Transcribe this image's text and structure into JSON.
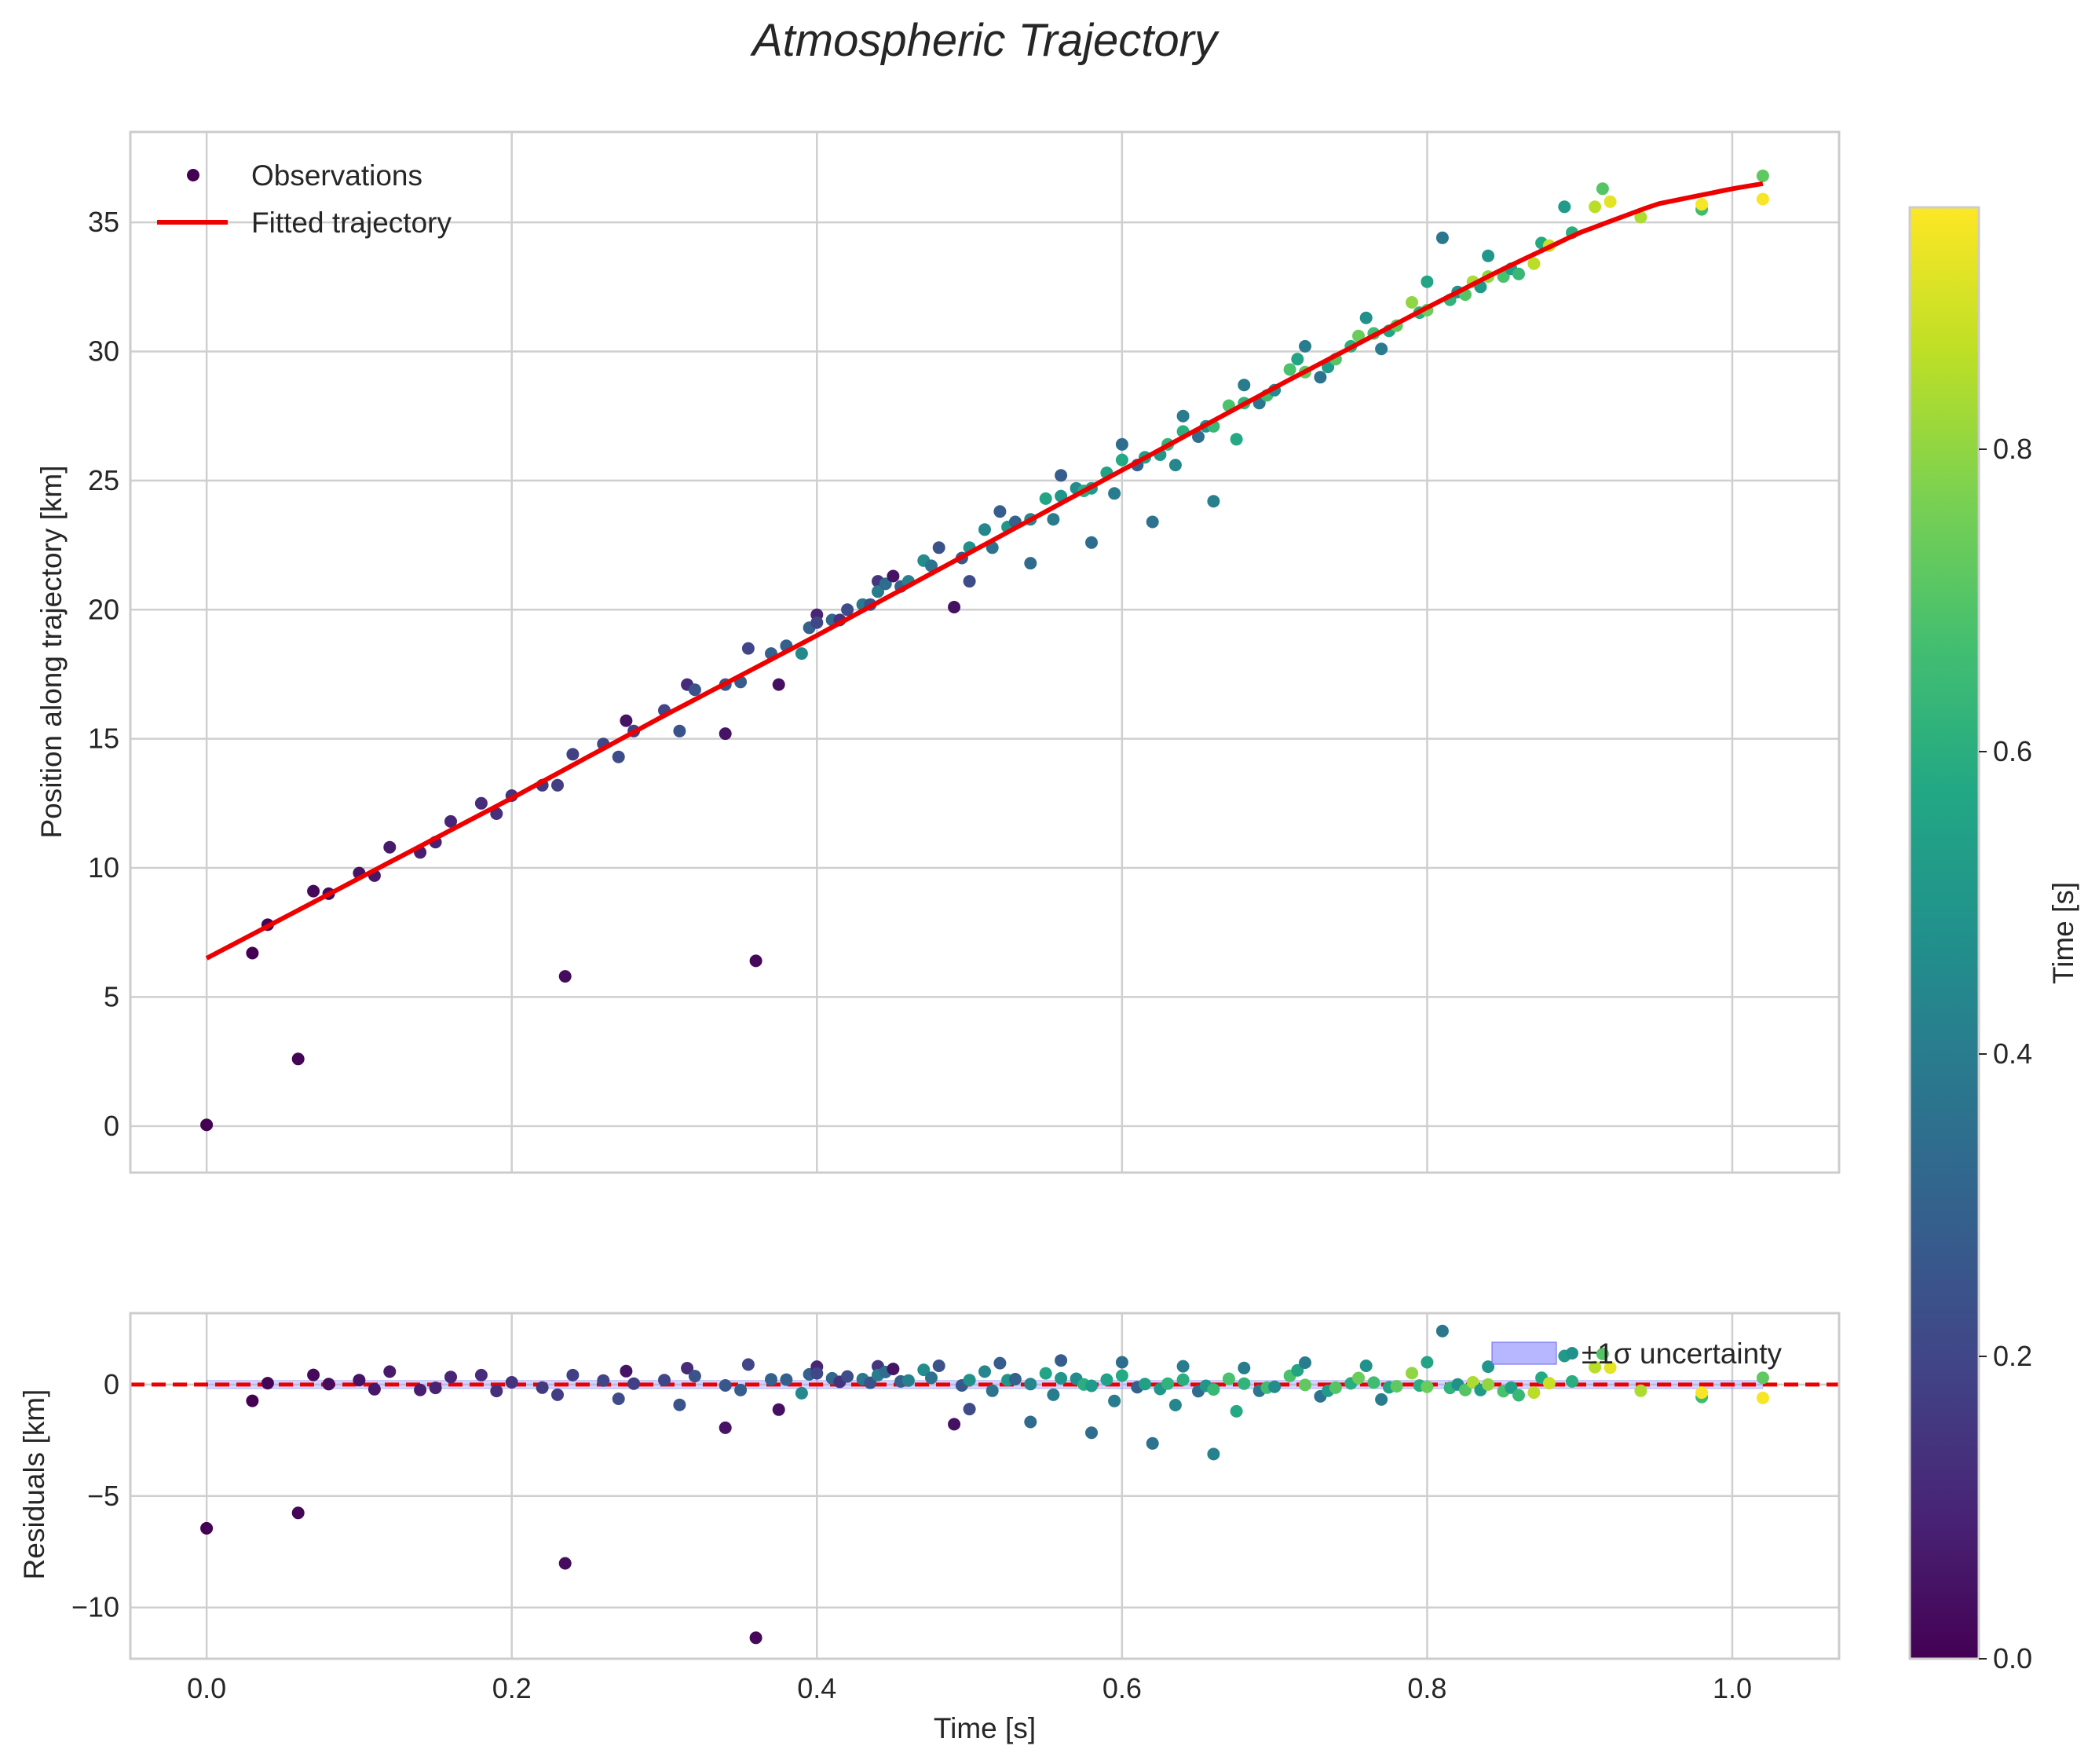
{
  "chart_data": {
    "title": "Atmospheric Trajectory",
    "colormap": "viridis",
    "colors": {
      "fit": "#ee0000",
      "band": "#9999ff",
      "grid": "#cfcfcf",
      "spine": "#cccccc",
      "text": "#262626"
    },
    "main": {
      "type": "scatter",
      "ylabel": "Position along trajectory [km]",
      "xlim": [
        -0.05,
        1.07
      ],
      "ylim": [
        -1.8,
        38.5
      ],
      "xticks": [
        0.0,
        0.2,
        0.4,
        0.6,
        0.8,
        1.0
      ],
      "yticks": [
        0,
        5,
        10,
        15,
        20,
        25,
        30,
        35
      ],
      "legend": {
        "location": "top-left",
        "observations_label": "Observations",
        "fit_label": "Fitted trajectory"
      }
    },
    "residuals": {
      "type": "scatter",
      "ylabel": "Residuals [km]",
      "xlabel": "Time [s]",
      "xlim": [
        -0.05,
        1.07
      ],
      "ylim": [
        -12.3,
        3.2
      ],
      "xticks": [
        0.0,
        0.2,
        0.4,
        0.6,
        0.8,
        1.0
      ],
      "xtick_labels": [
        "0.0",
        "0.2",
        "0.4",
        "0.6",
        "0.8",
        "1.0"
      ],
      "yticks": [
        0,
        -5,
        -10
      ],
      "ytick_labels": [
        "0",
        "−5",
        "−10"
      ],
      "band_sigma": 0.18,
      "legend": {
        "location": "top-right",
        "band_label": "±1σ uncertainty"
      }
    },
    "colorbar": {
      "label": "Time [s]",
      "range": [
        0.0,
        0.96
      ],
      "ticks": [
        0.0,
        0.2,
        0.4,
        0.6,
        0.8
      ],
      "tick_labels": [
        "0.0",
        "0.2",
        "0.4",
        "0.6",
        "0.8"
      ]
    },
    "fit_curve": {
      "x": [
        0.0,
        0.1,
        0.2,
        0.3,
        0.4,
        0.5,
        0.6,
        0.7,
        0.8,
        0.85,
        0.9,
        0.95,
        1.0,
        1.02
      ],
      "y": [
        6.5,
        9.6,
        12.7,
        15.9,
        19.0,
        22.2,
        25.4,
        28.6,
        31.7,
        33.2,
        34.6,
        35.7,
        36.3,
        36.5
      ]
    },
    "observations": [
      [
        0.0,
        0.05,
        0.0
      ],
      [
        0.03,
        6.7,
        0.0
      ],
      [
        0.04,
        7.8,
        0.01
      ],
      [
        0.06,
        2.6,
        0.01
      ],
      [
        0.07,
        9.1,
        0.02
      ],
      [
        0.08,
        9.0,
        0.03
      ],
      [
        0.1,
        9.8,
        0.05
      ],
      [
        0.11,
        9.7,
        0.06
      ],
      [
        0.12,
        10.8,
        0.07
      ],
      [
        0.14,
        10.6,
        0.08
      ],
      [
        0.15,
        11.0,
        0.09
      ],
      [
        0.16,
        11.8,
        0.1
      ],
      [
        0.18,
        12.5,
        0.12
      ],
      [
        0.19,
        12.1,
        0.13
      ],
      [
        0.2,
        12.8,
        0.14
      ],
      [
        0.22,
        13.2,
        0.16
      ],
      [
        0.23,
        13.2,
        0.17
      ],
      [
        0.235,
        5.8,
        0.03
      ],
      [
        0.24,
        14.4,
        0.18
      ],
      [
        0.26,
        14.8,
        0.2
      ],
      [
        0.27,
        14.3,
        0.22
      ],
      [
        0.275,
        15.7,
        0.05
      ],
      [
        0.28,
        15.3,
        0.18
      ],
      [
        0.3,
        16.1,
        0.2
      ],
      [
        0.31,
        15.3,
        0.25
      ],
      [
        0.315,
        17.1,
        0.12
      ],
      [
        0.32,
        16.9,
        0.24
      ],
      [
        0.34,
        17.1,
        0.26
      ],
      [
        0.34,
        15.2,
        0.05
      ],
      [
        0.35,
        17.2,
        0.28
      ],
      [
        0.355,
        18.5,
        0.2
      ],
      [
        0.36,
        6.4,
        0.02
      ],
      [
        0.37,
        18.3,
        0.3
      ],
      [
        0.375,
        17.1,
        0.04
      ],
      [
        0.38,
        18.6,
        0.29
      ],
      [
        0.39,
        18.3,
        0.45
      ],
      [
        0.395,
        19.3,
        0.3
      ],
      [
        0.4,
        19.8,
        0.1
      ],
      [
        0.4,
        19.5,
        0.2
      ],
      [
        0.41,
        19.6,
        0.32
      ],
      [
        0.415,
        19.6,
        0.14
      ],
      [
        0.42,
        20.0,
        0.22
      ],
      [
        0.43,
        20.2,
        0.38
      ],
      [
        0.435,
        20.2,
        0.24
      ],
      [
        0.44,
        21.1,
        0.15
      ],
      [
        0.44,
        20.7,
        0.4
      ],
      [
        0.445,
        21.0,
        0.34
      ],
      [
        0.45,
        21.3,
        0.05
      ],
      [
        0.455,
        20.9,
        0.3
      ],
      [
        0.46,
        21.1,
        0.42
      ],
      [
        0.47,
        21.9,
        0.46
      ],
      [
        0.475,
        21.7,
        0.36
      ],
      [
        0.48,
        22.4,
        0.24
      ],
      [
        0.49,
        20.1,
        0.04
      ],
      [
        0.495,
        22.0,
        0.26
      ],
      [
        0.5,
        21.1,
        0.22
      ],
      [
        0.5,
        22.4,
        0.48
      ],
      [
        0.51,
        23.1,
        0.44
      ],
      [
        0.515,
        22.4,
        0.36
      ],
      [
        0.52,
        23.8,
        0.28
      ],
      [
        0.525,
        23.2,
        0.5
      ],
      [
        0.53,
        23.4,
        0.3
      ],
      [
        0.54,
        23.5,
        0.44
      ],
      [
        0.54,
        21.8,
        0.33
      ],
      [
        0.55,
        24.3,
        0.56
      ],
      [
        0.555,
        23.5,
        0.4
      ],
      [
        0.56,
        25.2,
        0.28
      ],
      [
        0.56,
        24.4,
        0.5
      ],
      [
        0.57,
        24.7,
        0.46
      ],
      [
        0.575,
        24.6,
        0.6
      ],
      [
        0.58,
        22.6,
        0.34
      ],
      [
        0.58,
        24.7,
        0.52
      ],
      [
        0.59,
        25.3,
        0.55
      ],
      [
        0.595,
        24.5,
        0.4
      ],
      [
        0.6,
        26.4,
        0.34
      ],
      [
        0.6,
        25.8,
        0.58
      ],
      [
        0.61,
        25.6,
        0.3
      ],
      [
        0.615,
        25.9,
        0.54
      ],
      [
        0.62,
        23.4,
        0.36
      ],
      [
        0.625,
        26.0,
        0.5
      ],
      [
        0.63,
        26.4,
        0.62
      ],
      [
        0.635,
        25.6,
        0.44
      ],
      [
        0.64,
        27.5,
        0.4
      ],
      [
        0.64,
        26.9,
        0.6
      ],
      [
        0.65,
        26.7,
        0.34
      ],
      [
        0.655,
        27.1,
        0.5
      ],
      [
        0.66,
        24.2,
        0.42
      ],
      [
        0.66,
        27.1,
        0.64
      ],
      [
        0.67,
        27.9,
        0.68
      ],
      [
        0.675,
        26.6,
        0.58
      ],
      [
        0.68,
        28.7,
        0.4
      ],
      [
        0.68,
        28.0,
        0.62
      ],
      [
        0.69,
        28.0,
        0.38
      ],
      [
        0.695,
        28.3,
        0.66
      ],
      [
        0.7,
        28.5,
        0.46
      ],
      [
        0.71,
        29.3,
        0.68
      ],
      [
        0.715,
        29.7,
        0.56
      ],
      [
        0.72,
        30.2,
        0.4
      ],
      [
        0.72,
        29.2,
        0.72
      ],
      [
        0.73,
        29.0,
        0.36
      ],
      [
        0.735,
        29.4,
        0.52
      ],
      [
        0.74,
        29.7,
        0.7
      ],
      [
        0.75,
        30.2,
        0.6
      ],
      [
        0.755,
        30.6,
        0.74
      ],
      [
        0.76,
        31.3,
        0.48
      ],
      [
        0.765,
        30.7,
        0.66
      ],
      [
        0.77,
        30.1,
        0.4
      ],
      [
        0.775,
        30.8,
        0.56
      ],
      [
        0.78,
        31.0,
        0.72
      ],
      [
        0.79,
        31.9,
        0.8
      ],
      [
        0.795,
        31.5,
        0.6
      ],
      [
        0.8,
        32.7,
        0.56
      ],
      [
        0.8,
        31.6,
        0.74
      ],
      [
        0.81,
        34.4,
        0.38
      ],
      [
        0.815,
        32.0,
        0.62
      ],
      [
        0.82,
        32.3,
        0.48
      ],
      [
        0.825,
        32.2,
        0.7
      ],
      [
        0.83,
        32.7,
        0.84
      ],
      [
        0.835,
        32.5,
        0.52
      ],
      [
        0.84,
        33.7,
        0.5
      ],
      [
        0.84,
        32.9,
        0.8
      ],
      [
        0.85,
        32.9,
        0.68
      ],
      [
        0.855,
        33.2,
        0.54
      ],
      [
        0.86,
        33.0,
        0.64
      ],
      [
        0.87,
        33.4,
        0.86
      ],
      [
        0.875,
        34.2,
        0.58
      ],
      [
        0.88,
        34.1,
        0.88
      ],
      [
        0.89,
        35.6,
        0.52
      ],
      [
        0.895,
        34.6,
        0.6
      ],
      [
        0.91,
        35.6,
        0.86
      ],
      [
        0.915,
        36.3,
        0.7
      ],
      [
        0.92,
        35.8,
        0.92
      ],
      [
        0.94,
        35.2,
        0.84
      ],
      [
        0.98,
        35.5,
        0.66
      ],
      [
        0.98,
        35.7,
        0.95
      ],
      [
        1.02,
        36.8,
        0.72
      ],
      [
        1.02,
        35.9,
        0.95
      ]
    ]
  }
}
